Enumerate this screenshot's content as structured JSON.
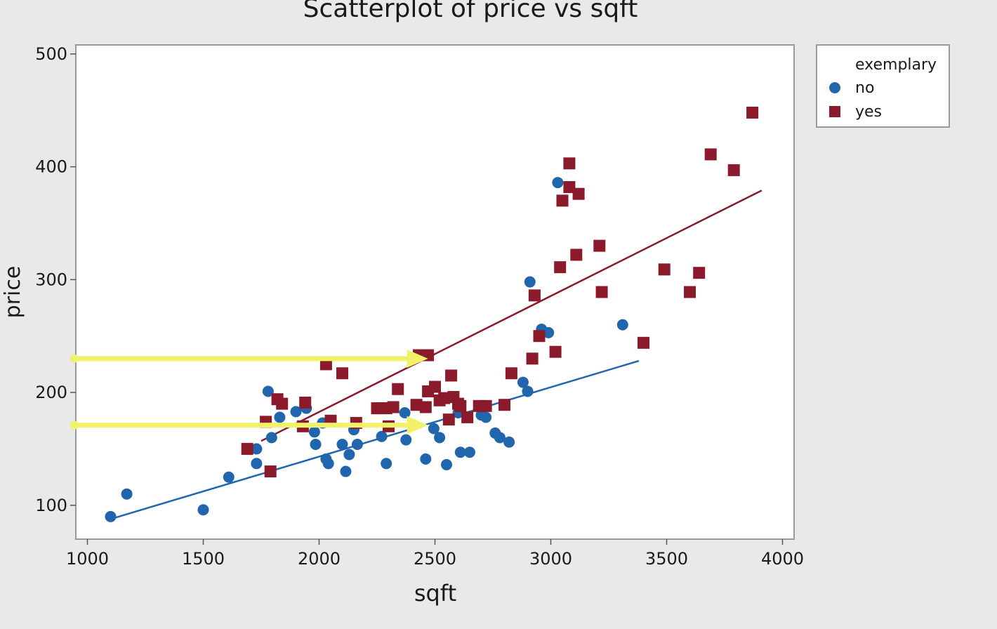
{
  "chart_data": {
    "type": "scatter",
    "title": "Scatterplot of price vs sqft",
    "xlabel": "sqft",
    "ylabel": "price",
    "xlim": [
      950,
      4050
    ],
    "ylim": [
      70,
      508
    ],
    "xticks": [
      1000,
      1500,
      2000,
      2500,
      3000,
      3500,
      4000
    ],
    "yticks": [
      100,
      200,
      300,
      400,
      500
    ],
    "grid": false,
    "legend": {
      "title": "exemplary",
      "placement": "outside-right-top"
    },
    "series": [
      {
        "name": "no",
        "marker": "circle",
        "color": "#2166ac",
        "points": [
          [
            1100,
            90
          ],
          [
            1170,
            110
          ],
          [
            1500,
            96
          ],
          [
            1610,
            125
          ],
          [
            1730,
            150
          ],
          [
            1730,
            137
          ],
          [
            1780,
            201
          ],
          [
            1795,
            160
          ],
          [
            1830,
            178
          ],
          [
            1900,
            183
          ],
          [
            1945,
            186
          ],
          [
            1980,
            165
          ],
          [
            1985,
            154
          ],
          [
            2015,
            173
          ],
          [
            2030,
            141
          ],
          [
            2040,
            137
          ],
          [
            2100,
            154
          ],
          [
            2115,
            130
          ],
          [
            2130,
            145
          ],
          [
            2150,
            167
          ],
          [
            2165,
            154
          ],
          [
            2270,
            161
          ],
          [
            2290,
            137
          ],
          [
            2300,
            170
          ],
          [
            2370,
            182
          ],
          [
            2375,
            158
          ],
          [
            2460,
            141
          ],
          [
            2495,
            168
          ],
          [
            2520,
            160
          ],
          [
            2550,
            136
          ],
          [
            2600,
            182
          ],
          [
            2610,
            147
          ],
          [
            2650,
            147
          ],
          [
            2700,
            180
          ],
          [
            2720,
            178
          ],
          [
            2760,
            164
          ],
          [
            2780,
            160
          ],
          [
            2820,
            156
          ],
          [
            2880,
            209
          ],
          [
            2900,
            201
          ],
          [
            2910,
            298
          ],
          [
            2960,
            256
          ],
          [
            2990,
            253
          ],
          [
            3030,
            386
          ],
          [
            3310,
            260
          ]
        ]
      },
      {
        "name": "yes",
        "marker": "square",
        "color": "#8b1a2b",
        "points": [
          [
            1690,
            150
          ],
          [
            1770,
            174
          ],
          [
            1790,
            130
          ],
          [
            1820,
            194
          ],
          [
            1840,
            190
          ],
          [
            1930,
            170
          ],
          [
            1940,
            191
          ],
          [
            2030,
            225
          ],
          [
            2050,
            175
          ],
          [
            2100,
            217
          ],
          [
            2160,
            173
          ],
          [
            2250,
            186
          ],
          [
            2270,
            186
          ],
          [
            2290,
            186
          ],
          [
            2300,
            170
          ],
          [
            2320,
            187
          ],
          [
            2340,
            203
          ],
          [
            2420,
            189
          ],
          [
            2430,
            233
          ],
          [
            2470,
            233
          ],
          [
            2460,
            187
          ],
          [
            2470,
            201
          ],
          [
            2500,
            205
          ],
          [
            2520,
            193
          ],
          [
            2540,
            195
          ],
          [
            2560,
            176
          ],
          [
            2570,
            215
          ],
          [
            2580,
            196
          ],
          [
            2600,
            190
          ],
          [
            2610,
            188
          ],
          [
            2640,
            178
          ],
          [
            2690,
            188
          ],
          [
            2720,
            188
          ],
          [
            2800,
            189
          ],
          [
            2830,
            217
          ],
          [
            2920,
            230
          ],
          [
            2930,
            286
          ],
          [
            2950,
            250
          ],
          [
            3020,
            236
          ],
          [
            3040,
            311
          ],
          [
            3050,
            370
          ],
          [
            3080,
            403
          ],
          [
            3080,
            382
          ],
          [
            3110,
            322
          ],
          [
            3120,
            376
          ],
          [
            3210,
            330
          ],
          [
            3220,
            289
          ],
          [
            3400,
            244
          ],
          [
            3490,
            309
          ],
          [
            3600,
            289
          ],
          [
            3640,
            306
          ],
          [
            3690,
            411
          ],
          [
            3790,
            397
          ],
          [
            3870,
            448
          ]
        ]
      }
    ],
    "fit_lines": [
      {
        "series": "no",
        "from": [
          1120,
          89
        ],
        "to": [
          3380,
          228
        ]
      },
      {
        "series": "yes",
        "from": [
          1750,
          157
        ],
        "to": [
          3910,
          379
        ]
      }
    ],
    "annotations": [
      {
        "type": "arrow",
        "color": "#f2f26a",
        "from": [
          920,
          230
        ],
        "to": [
          2470,
          230
        ]
      },
      {
        "type": "arrow",
        "color": "#f2f26a",
        "from": [
          920,
          171
        ],
        "to": [
          2470,
          171
        ]
      }
    ]
  }
}
